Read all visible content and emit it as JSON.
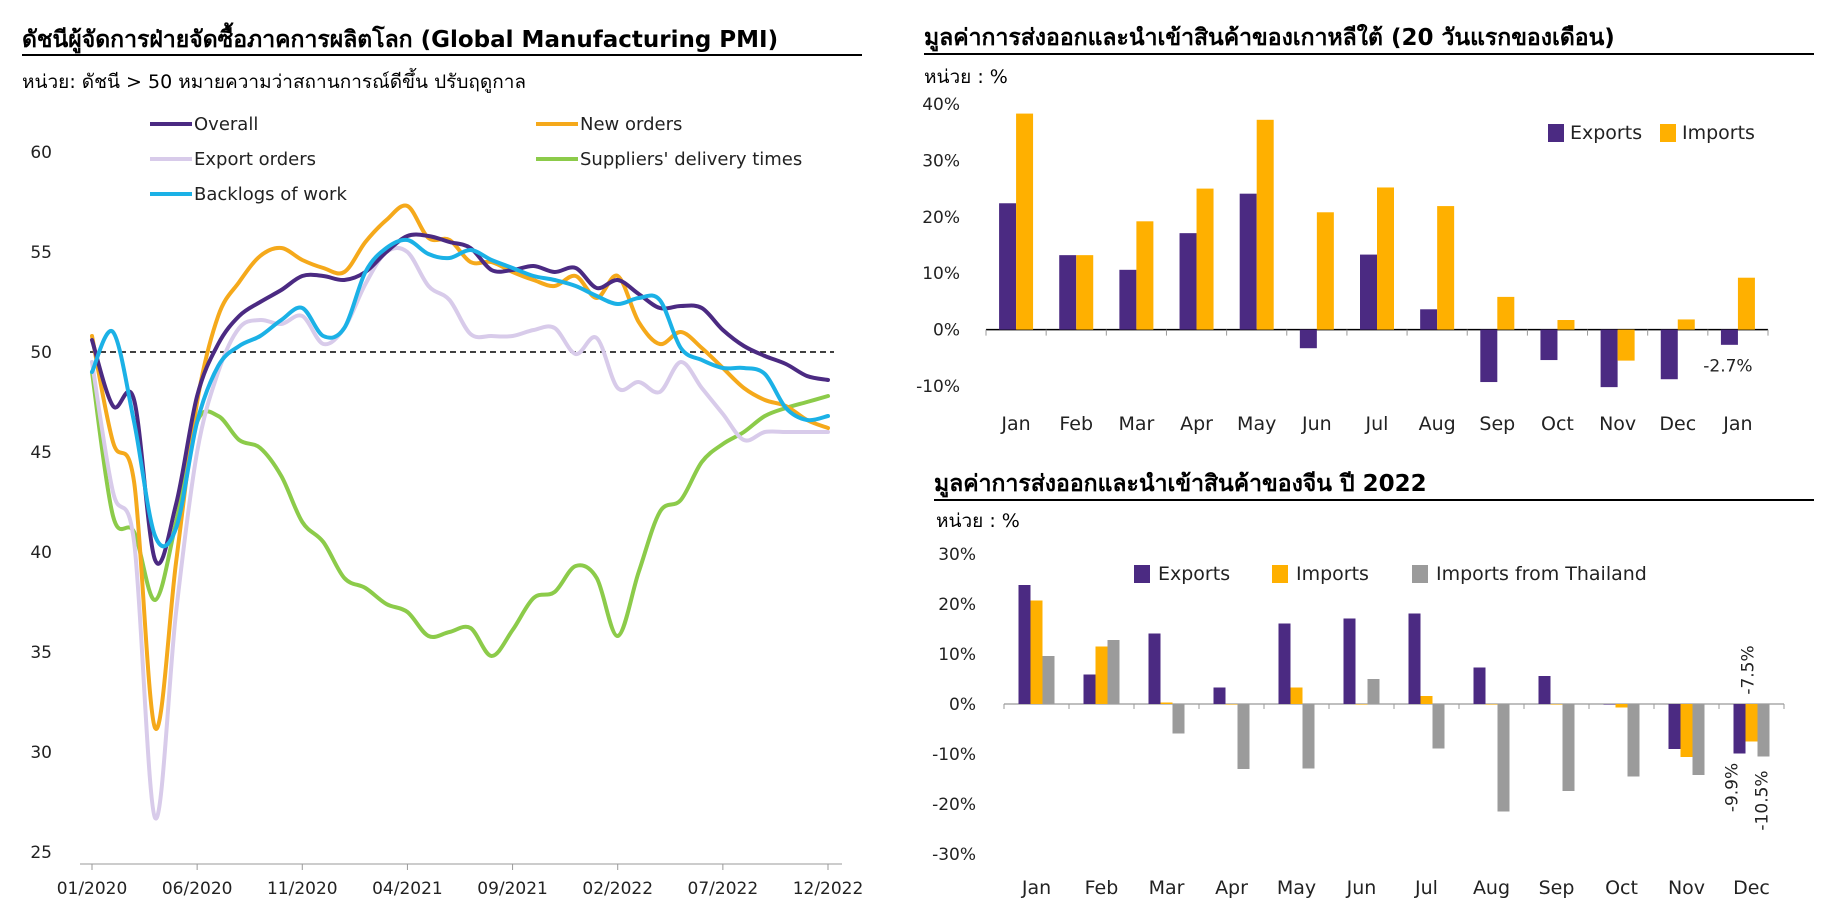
{
  "colors": {
    "overall": "#4B2A82",
    "new_orders": "#F5A91B",
    "export_orders": "#D8CBEA",
    "suppliers": "#8CCB4A",
    "backlogs": "#1BB1E6",
    "exports": "#4B2A82",
    "imports": "#FFB000",
    "imports_thailand": "#9B9B9B"
  },
  "chart_data": [
    {
      "id": "pmi",
      "type": "line",
      "title": "ดัชนีผู้จัดการฝ่ายจัดซื้อภาคการผลิตโลก (Global Manufacturing PMI)",
      "unit_note": "หน่วย: ดัชนี > 50 หมายความว่าสถานการณ์ดีขึ้น  ปรับฤดูกาล",
      "x_ticks": [
        "01/2020",
        "06/2020",
        "11/2020",
        "04/2021",
        "09/2021",
        "02/2022",
        "07/2022",
        "12/2022"
      ],
      "y_ticks": [
        "60",
        "55",
        "50",
        "45",
        "40",
        "35",
        "30",
        "25"
      ],
      "ylim": [
        25,
        60
      ],
      "reference_line": 50,
      "grid": false,
      "legend_position": "top",
      "series": [
        {
          "name": "Overall",
          "color_key": "overall",
          "values": [
            50.6,
            47.3,
            47.6,
            39.6,
            42.4,
            47.8,
            50.4,
            51.8,
            52.5,
            53.1,
            53.8,
            53.8,
            53.6,
            54.0,
            55.0,
            55.8,
            55.8,
            55.5,
            55.2,
            54.1,
            54.1,
            54.3,
            54.0,
            54.2,
            53.2,
            53.6,
            52.9,
            52.2,
            52.3,
            52.2,
            51.1,
            50.3,
            49.8,
            49.4,
            48.8,
            48.6
          ]
        },
        {
          "name": "New orders",
          "color_key": "new_orders",
          "values": [
            50.8,
            45.5,
            43.5,
            31.2,
            39.5,
            47.5,
            51.8,
            53.5,
            54.8,
            55.2,
            54.6,
            54.2,
            54.0,
            55.5,
            56.6,
            57.3,
            55.7,
            55.6,
            54.5,
            54.5,
            54.0,
            53.6,
            53.3,
            53.8,
            52.7,
            53.8,
            51.5,
            50.4,
            51.0,
            50.2,
            49.2,
            48.2,
            47.6,
            47.3,
            46.6,
            46.2
          ]
        },
        {
          "name": "Export orders",
          "color_key": "export_orders",
          "values": [
            49.5,
            43.0,
            40.5,
            26.7,
            37.0,
            45.0,
            49.0,
            51.2,
            51.6,
            51.4,
            51.8,
            50.4,
            51.2,
            53.4,
            55.0,
            55.0,
            53.3,
            52.6,
            50.9,
            50.8,
            50.8,
            51.1,
            51.2,
            49.9,
            50.7,
            48.2,
            48.5,
            48.0,
            49.5,
            48.2,
            46.9,
            45.6,
            46.0,
            46.0,
            46.0,
            46.0
          ]
        },
        {
          "name": "Suppliers' delivery times",
          "color_key": "suppliers",
          "values": [
            49.0,
            41.8,
            41.0,
            37.6,
            41.5,
            46.5,
            46.8,
            45.6,
            45.2,
            43.8,
            41.5,
            40.5,
            38.7,
            38.2,
            37.4,
            37.0,
            35.8,
            36.0,
            36.2,
            34.8,
            36.1,
            37.7,
            38.0,
            39.3,
            38.7,
            35.8,
            39.0,
            42.0,
            42.6,
            44.5,
            45.4,
            46.0,
            46.8,
            47.2,
            47.5,
            47.8
          ]
        },
        {
          "name": "Backlogs of work",
          "color_key": "backlogs",
          "values": [
            49.0,
            51.0,
            46.5,
            40.8,
            41.2,
            46.5,
            49.3,
            50.3,
            50.8,
            51.6,
            52.2,
            50.8,
            51.2,
            54.0,
            55.2,
            55.6,
            54.9,
            54.7,
            55.1,
            54.6,
            54.2,
            53.8,
            53.6,
            53.3,
            52.8,
            52.4,
            52.7,
            52.6,
            50.2,
            49.6,
            49.2,
            49.2,
            48.9,
            47.2,
            46.6,
            46.8
          ]
        }
      ]
    },
    {
      "id": "korea",
      "type": "bar",
      "title": "มูลค่าการส่งออกและนำเข้าสินค้าของเกาหลีใต้ (20 วันแรกของเดือน)",
      "unit_note": "หน่วย : %",
      "categories": [
        "Jan",
        "Feb",
        "Mar",
        "Apr",
        "May",
        "Jun",
        "Jul",
        "Aug",
        "Sep",
        "Oct",
        "Nov",
        "Dec",
        "Jan"
      ],
      "y_ticks": [
        "40%",
        "30%",
        "20%",
        "10%",
        "0%",
        "-10%"
      ],
      "ylim": [
        -10,
        40
      ],
      "legend_position": "top-right",
      "series": [
        {
          "name": "Exports",
          "color_key": "exports",
          "values": [
            22.4,
            13.2,
            10.6,
            17.1,
            24.1,
            -3.3,
            13.3,
            3.6,
            -9.3,
            -5.4,
            -10.2,
            -8.8,
            -2.7
          ]
        },
        {
          "name": "Imports",
          "color_key": "imports",
          "values": [
            38.3,
            13.2,
            19.2,
            25.0,
            37.2,
            20.8,
            25.2,
            21.9,
            5.8,
            1.7,
            -5.5,
            1.8,
            9.2
          ]
        }
      ],
      "annotations": [
        {
          "text": "-2.7%"
        }
      ]
    },
    {
      "id": "china",
      "type": "bar",
      "title": "มูลค่าการส่งออกและนำเข้าสินค้าของจีน ปี 2022",
      "unit_note": "หน่วย : %",
      "categories": [
        "Jan",
        "Feb",
        "Mar",
        "Apr",
        "May",
        "Jun",
        "Jul",
        "Aug",
        "Sep",
        "Oct",
        "Nov",
        "Dec"
      ],
      "y_ticks": [
        "30%",
        "20%",
        "10%",
        "0%",
        "-10%",
        "-20%",
        "-30%"
      ],
      "ylim": [
        -30,
        30
      ],
      "legend_position": "top",
      "series": [
        {
          "name": "Exports",
          "color_key": "exports",
          "values": [
            23.8,
            5.9,
            14.1,
            3.3,
            16.1,
            17.1,
            18.1,
            7.3,
            5.6,
            0.0,
            -9.0,
            -9.9
          ]
        },
        {
          "name": "Imports",
          "color_key": "imports",
          "values": [
            20.7,
            11.5,
            0.3,
            0.0,
            3.3,
            0.0,
            1.6,
            0.0,
            0.0,
            -0.7,
            -10.6,
            -7.5
          ]
        },
        {
          "name": "Imports from Thailand",
          "color_key": "imports_thailand",
          "values": [
            9.6,
            12.8,
            -5.9,
            -13.0,
            -12.9,
            5.0,
            -8.9,
            -21.5,
            -17.4,
            -14.5,
            -14.2,
            -10.5
          ]
        }
      ],
      "annotations": [
        {
          "text": "-9.9%"
        },
        {
          "text": "-7.5%"
        },
        {
          "text": "-10.5%"
        }
      ]
    }
  ]
}
